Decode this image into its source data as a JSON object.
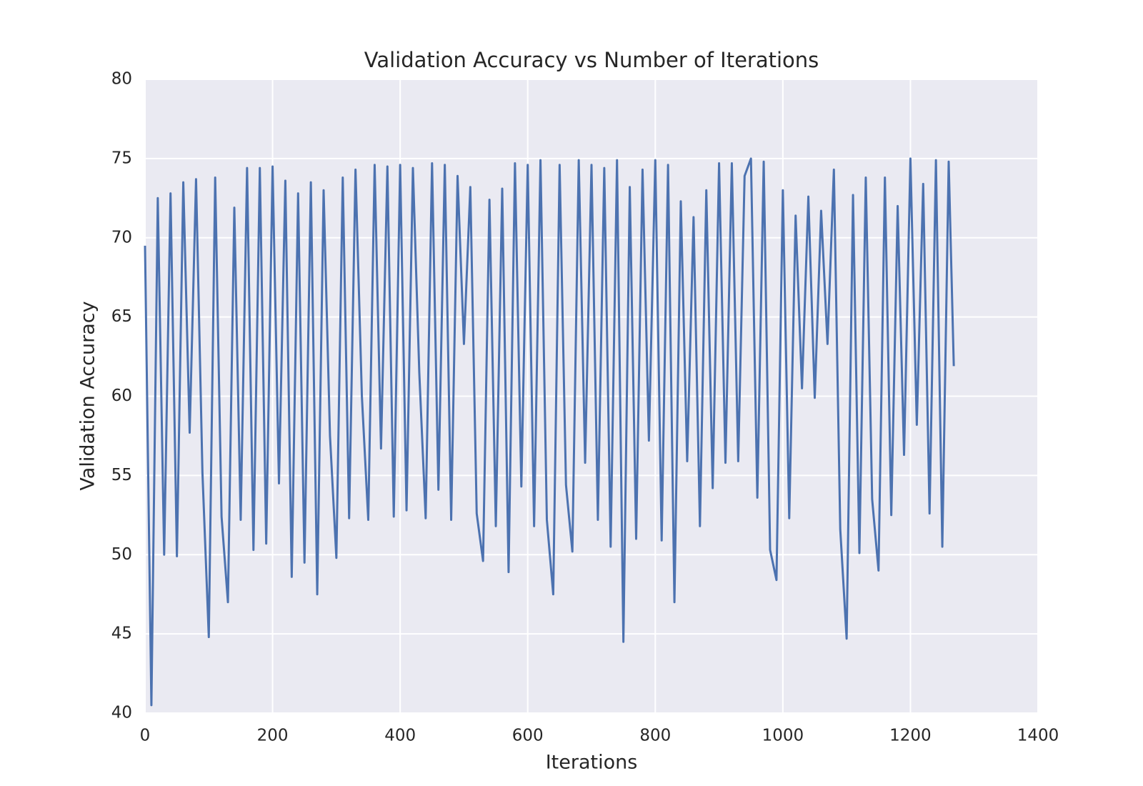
{
  "chart_data": {
    "type": "line",
    "title": "Validation Accuracy vs Number of Iterations",
    "x_label": "Iterations",
    "y_label": "Validation Accuracy",
    "x": [
      0,
      10,
      20,
      30,
      40,
      50,
      60,
      70,
      80,
      90,
      100,
      110,
      120,
      130,
      140,
      150,
      160,
      170,
      180,
      190,
      200,
      210,
      220,
      230,
      240,
      250,
      260,
      270,
      280,
      290,
      300,
      310,
      320,
      330,
      340,
      350,
      360,
      370,
      380,
      390,
      400,
      410,
      420,
      430,
      440,
      450,
      460,
      470,
      480,
      490,
      500,
      510,
      520,
      530,
      540,
      550,
      560,
      570,
      580,
      590,
      600,
      610,
      620,
      630,
      640,
      650,
      660,
      670,
      680,
      690,
      700,
      710,
      720,
      730,
      740,
      750,
      760,
      770,
      780,
      790,
      800,
      810,
      820,
      830,
      840,
      850,
      860,
      870,
      880,
      890,
      900,
      910,
      920,
      930,
      940,
      950,
      960,
      970,
      980,
      990,
      1000,
      1010,
      1020,
      1030,
      1040,
      1050,
      1060,
      1070,
      1080,
      1090,
      1100,
      1110,
      1120,
      1130,
      1140,
      1150,
      1160,
      1170,
      1180,
      1190,
      1200,
      1210,
      1220,
      1230,
      1240,
      1250,
      1260,
      1268
    ],
    "values": [
      69.5,
      40.5,
      72.5,
      50,
      72.8,
      49.9,
      73.5,
      57.7,
      73.7,
      55.2,
      44.8,
      73.8,
      52.4,
      47,
      71.9,
      52.2,
      74.4,
      50.3,
      74.4,
      50.7,
      74.5,
      54.5,
      73.6,
      48.6,
      72.8,
      49.5,
      73.5,
      47.5,
      73,
      57.5,
      49.8,
      73.8,
      52.3,
      74.3,
      60,
      52.2,
      74.6,
      56.7,
      74.5,
      52.4,
      74.6,
      52.8,
      74.4,
      61.5,
      52.3,
      74.7,
      54.1,
      74.6,
      52.2,
      73.9,
      63.3,
      73.2,
      52.6,
      49.6,
      72.4,
      51.8,
      73.1,
      48.9,
      74.7,
      54.3,
      74.6,
      51.8,
      74.9,
      52.2,
      47.5,
      74.6,
      54.4,
      50.2,
      74.9,
      55.8,
      74.6,
      52.2,
      74.4,
      50.5,
      74.9,
      44.5,
      73.2,
      51,
      74.3,
      57.2,
      74.9,
      50.9,
      74.6,
      47,
      72.3,
      55.9,
      71.3,
      51.8,
      73,
      54.2,
      74.7,
      55.8,
      74.7,
      55.9,
      73.9,
      75,
      53.6,
      74.8,
      50.3,
      48.4,
      73,
      52.3,
      71.4,
      60.5,
      72.6,
      59.9,
      71.7,
      63.3,
      74.3,
      51.6,
      44.7,
      72.7,
      50.1,
      73.8,
      53.5,
      49,
      73.8,
      52.5,
      72,
      56.3,
      75,
      58.2,
      73.4,
      52.6,
      74.9,
      50.5,
      74.8,
      61.9
    ],
    "color": "#4c72b0",
    "background": "#eaeaf2",
    "grid": true,
    "xlim": [
      0,
      1400
    ],
    "xticks": [
      0,
      200,
      400,
      600,
      800,
      1000,
      1200,
      1400
    ],
    "ylim": [
      40,
      80
    ],
    "yticks": [
      40,
      45,
      50,
      55,
      60,
      65,
      70,
      75,
      80
    ]
  }
}
